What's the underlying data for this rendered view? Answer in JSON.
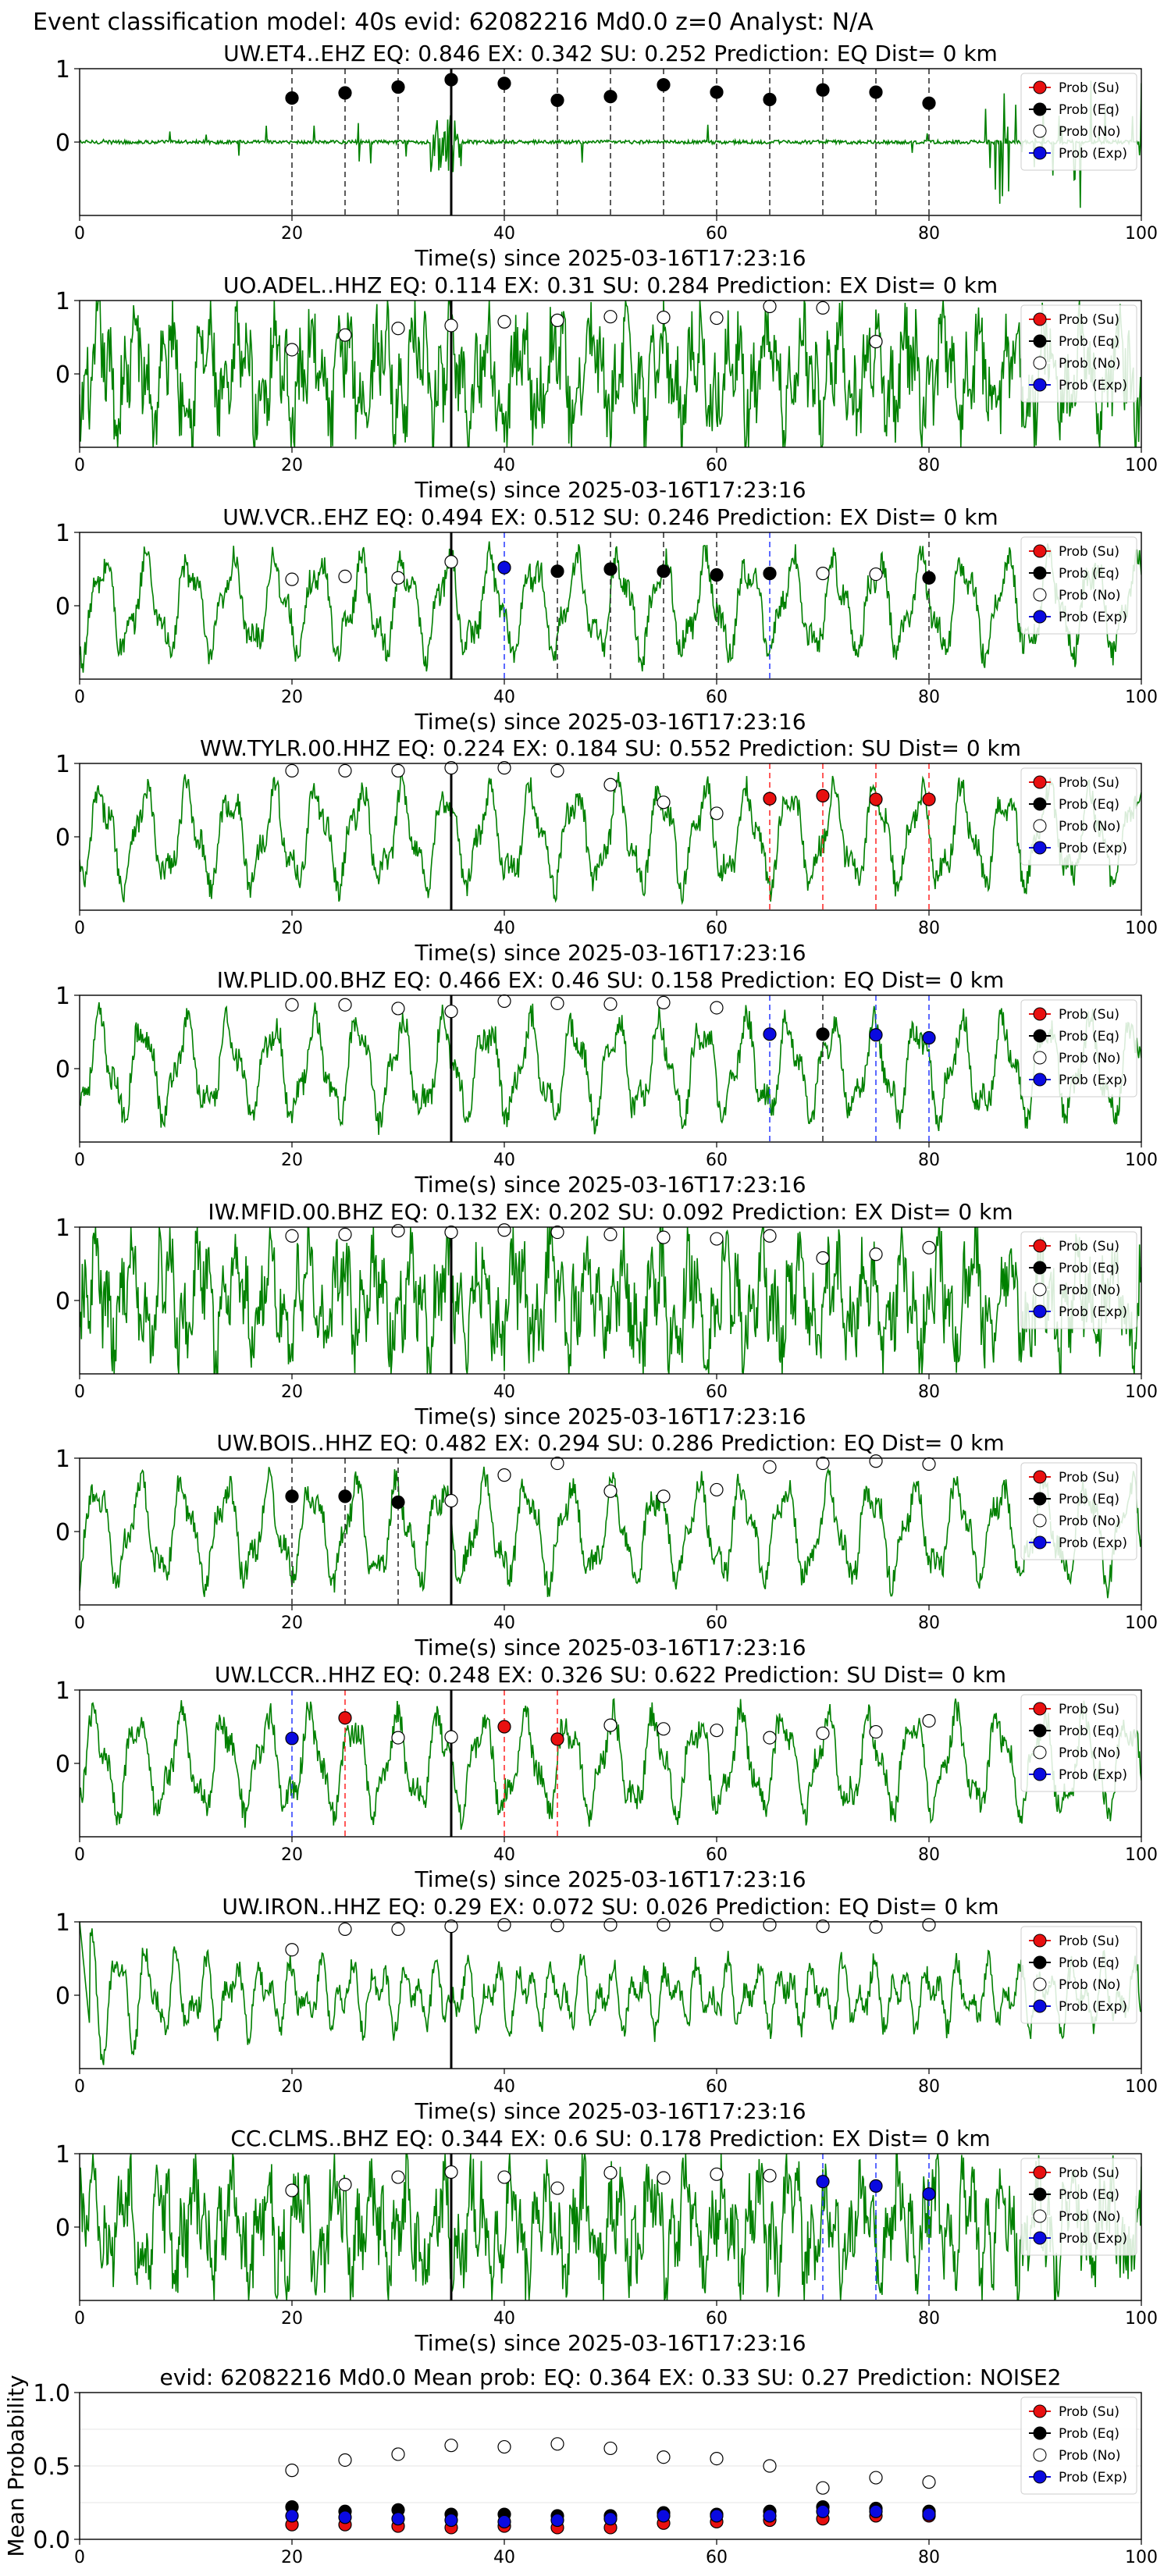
{
  "suptitle": "Event classification model: 40s evid: 62082216 Md0.0 z=0 Analyst: N/A",
  "colors": {
    "waveform": "#008000",
    "su": "#e81010",
    "eq": "#000000",
    "no": "#ffffff",
    "exp": "#0a0ae0",
    "line_su": "#ff3030",
    "line_eq": "#333333",
    "line_exp": "#3344ff",
    "origin": "#000000"
  },
  "legend_labels": [
    "Prob (Su)",
    "Prob (Eq)",
    "Prob (No)",
    "Prob (Exp)"
  ],
  "chart_data": [
    {
      "type": "line",
      "title": "UW.ET4..EHZ   EQ: 0.846  EX: 0.342  SU: 0.252   Prediction: EQ    Dist= 0 km",
      "xlabel": "Time(s) since 2025-03-16T17:23:16",
      "ylabel": "",
      "xlim": [
        0,
        100
      ],
      "ylim": [
        -1,
        1
      ],
      "xticks": [
        "0",
        "20",
        "40",
        "60",
        "80",
        "100"
      ],
      "yticks": [
        "1",
        "0"
      ],
      "origin_time": 35,
      "waveform_style": "spiky",
      "legend": "top-right",
      "series": [
        {
          "name": "Prob (Su)",
          "x": [],
          "y": []
        },
        {
          "name": "Prob (Eq)",
          "x": [
            20,
            25,
            30,
            35,
            40,
            45,
            50,
            55,
            60,
            65,
            70,
            75,
            80
          ],
          "y": [
            0.6,
            0.67,
            0.75,
            0.85,
            0.8,
            0.57,
            0.62,
            0.78,
            0.68,
            0.58,
            0.71,
            0.68,
            0.53
          ]
        },
        {
          "name": "Prob (No)",
          "x": [],
          "y": []
        },
        {
          "name": "Prob (Exp)",
          "x": [],
          "y": []
        }
      ],
      "pick_lines": [
        {
          "x": 20,
          "class": "eq"
        },
        {
          "x": 25,
          "class": "eq"
        },
        {
          "x": 30,
          "class": "eq"
        },
        {
          "x": 40,
          "class": "eq"
        },
        {
          "x": 45,
          "class": "eq"
        },
        {
          "x": 50,
          "class": "eq"
        },
        {
          "x": 55,
          "class": "eq"
        },
        {
          "x": 60,
          "class": "eq"
        },
        {
          "x": 65,
          "class": "eq"
        },
        {
          "x": 70,
          "class": "eq"
        },
        {
          "x": 75,
          "class": "eq"
        },
        {
          "x": 80,
          "class": "eq"
        }
      ]
    },
    {
      "type": "line",
      "title": "UO.ADEL..HHZ   EQ: 0.114  EX: 0.31  SU: 0.284   Prediction: EX    Dist= 0 km",
      "xlabel": "Time(s) since 2025-03-16T17:23:16",
      "ylabel": "",
      "xlim": [
        0,
        100
      ],
      "ylim": [
        -1,
        1
      ],
      "xticks": [
        "0",
        "20",
        "40",
        "60",
        "80",
        "100"
      ],
      "yticks": [
        "1",
        "0"
      ],
      "origin_time": 35,
      "waveform_style": "noisy",
      "legend": "top-right",
      "series": [
        {
          "name": "Prob (Su)",
          "x": [],
          "y": []
        },
        {
          "name": "Prob (Eq)",
          "x": [],
          "y": []
        },
        {
          "name": "Prob (No)",
          "x": [
            20,
            25,
            30,
            35,
            40,
            45,
            50,
            55,
            60,
            65,
            70,
            75
          ],
          "y": [
            0.33,
            0.53,
            0.62,
            0.66,
            0.71,
            0.73,
            0.78,
            0.77,
            0.76,
            0.92,
            0.9,
            0.44
          ]
        },
        {
          "name": "Prob (Exp)",
          "x": [],
          "y": []
        }
      ],
      "pick_lines": []
    },
    {
      "type": "line",
      "title": "UW.VCR..EHZ   EQ: 0.494  EX: 0.512  SU: 0.246   Prediction: EX    Dist= 0 km",
      "xlabel": "Time(s) since 2025-03-16T17:23:16",
      "ylabel": "",
      "xlim": [
        0,
        100
      ],
      "ylim": [
        -1,
        1
      ],
      "xticks": [
        "0",
        "20",
        "40",
        "60",
        "80",
        "100"
      ],
      "yticks": [
        "1",
        "0"
      ],
      "origin_time": 35,
      "waveform_style": "wavy",
      "legend": "top-right",
      "series": [
        {
          "name": "Prob (Su)",
          "x": [],
          "y": []
        },
        {
          "name": "Prob (Eq)",
          "x": [
            45,
            50,
            55,
            60,
            65,
            80
          ],
          "y": [
            0.47,
            0.5,
            0.47,
            0.42,
            0.44,
            0.38
          ]
        },
        {
          "name": "Prob (No)",
          "x": [
            20,
            25,
            30,
            35,
            70,
            75
          ],
          "y": [
            0.36,
            0.4,
            0.38,
            0.6,
            0.44,
            0.43
          ]
        },
        {
          "name": "Prob (Exp)",
          "x": [
            40
          ],
          "y": [
            0.52
          ]
        }
      ],
      "pick_lines": [
        {
          "x": 40,
          "class": "exp"
        },
        {
          "x": 45,
          "class": "eq"
        },
        {
          "x": 50,
          "class": "eq"
        },
        {
          "x": 55,
          "class": "eq"
        },
        {
          "x": 60,
          "class": "eq"
        },
        {
          "x": 65,
          "class": "exp"
        },
        {
          "x": 80,
          "class": "eq"
        }
      ]
    },
    {
      "type": "line",
      "title": "WW.TYLR.00.HHZ   EQ: 0.224  EX: 0.184  SU: 0.552   Prediction: SU    Dist= 0 km",
      "xlabel": "Time(s) since 2025-03-16T17:23:16",
      "ylabel": "",
      "xlim": [
        0,
        100
      ],
      "ylim": [
        -1,
        1
      ],
      "xticks": [
        "0",
        "20",
        "40",
        "60",
        "80",
        "100"
      ],
      "yticks": [
        "1",
        "0"
      ],
      "origin_time": 35,
      "waveform_style": "wavy",
      "legend": "top-right",
      "series": [
        {
          "name": "Prob (Su)",
          "x": [
            65,
            70,
            75,
            80
          ],
          "y": [
            0.52,
            0.56,
            0.51,
            0.51
          ]
        },
        {
          "name": "Prob (Eq)",
          "x": [],
          "y": []
        },
        {
          "name": "Prob (No)",
          "x": [
            20,
            25,
            30,
            35,
            40,
            45,
            50,
            55,
            60
          ],
          "y": [
            0.9,
            0.9,
            0.9,
            0.94,
            0.94,
            0.9,
            0.71,
            0.47,
            0.32
          ]
        },
        {
          "name": "Prob (Exp)",
          "x": [],
          "y": []
        }
      ],
      "pick_lines": [
        {
          "x": 65,
          "class": "su"
        },
        {
          "x": 70,
          "class": "su"
        },
        {
          "x": 75,
          "class": "su"
        },
        {
          "x": 80,
          "class": "su"
        }
      ]
    },
    {
      "type": "line",
      "title": "IW.PLID.00.BHZ   EQ: 0.466  EX: 0.46  SU: 0.158   Prediction: EQ    Dist= 0 km",
      "xlabel": "Time(s) since 2025-03-16T17:23:16",
      "ylabel": "",
      "xlim": [
        0,
        100
      ],
      "ylim": [
        -1,
        1
      ],
      "xticks": [
        "0",
        "20",
        "40",
        "60",
        "80",
        "100"
      ],
      "yticks": [
        "1",
        "0"
      ],
      "origin_time": 35,
      "waveform_style": "wavy",
      "legend": "top-right",
      "series": [
        {
          "name": "Prob (Su)",
          "x": [],
          "y": []
        },
        {
          "name": "Prob (Eq)",
          "x": [
            70
          ],
          "y": [
            0.47
          ]
        },
        {
          "name": "Prob (No)",
          "x": [
            20,
            25,
            30,
            35,
            40,
            45,
            50,
            55,
            60
          ],
          "y": [
            0.87,
            0.87,
            0.82,
            0.78,
            0.92,
            0.89,
            0.88,
            0.9,
            0.83
          ]
        },
        {
          "name": "Prob (Exp)",
          "x": [
            65,
            75,
            80
          ],
          "y": [
            0.47,
            0.46,
            0.42
          ]
        }
      ],
      "pick_lines": [
        {
          "x": 65,
          "class": "exp"
        },
        {
          "x": 70,
          "class": "eq"
        },
        {
          "x": 75,
          "class": "exp"
        },
        {
          "x": 80,
          "class": "exp"
        }
      ]
    },
    {
      "type": "line",
      "title": "IW.MFID.00.BHZ   EQ: 0.132  EX: 0.202  SU: 0.092   Prediction: EX    Dist= 0 km",
      "xlabel": "Time(s) since 2025-03-16T17:23:16",
      "ylabel": "",
      "xlim": [
        0,
        100
      ],
      "ylim": [
        -1,
        1
      ],
      "xticks": [
        "0",
        "20",
        "40",
        "60",
        "80",
        "100"
      ],
      "yticks": [
        "1",
        "0"
      ],
      "origin_time": 35,
      "waveform_style": "noisy",
      "legend": "top-right",
      "series": [
        {
          "name": "Prob (Su)",
          "x": [],
          "y": []
        },
        {
          "name": "Prob (Eq)",
          "x": [],
          "y": []
        },
        {
          "name": "Prob (No)",
          "x": [
            20,
            25,
            30,
            35,
            40,
            45,
            50,
            55,
            60,
            65,
            70,
            75,
            80
          ],
          "y": [
            0.88,
            0.9,
            0.95,
            0.93,
            0.96,
            0.93,
            0.9,
            0.86,
            0.84,
            0.88,
            0.58,
            0.63,
            0.72
          ]
        },
        {
          "name": "Prob (Exp)",
          "x": [],
          "y": []
        }
      ],
      "pick_lines": []
    },
    {
      "type": "line",
      "title": "UW.BOIS..HHZ   EQ: 0.482  EX: 0.294  SU: 0.286   Prediction: EQ    Dist= 0 km",
      "xlabel": "Time(s) since 2025-03-16T17:23:16",
      "ylabel": "",
      "xlim": [
        0,
        100
      ],
      "ylim": [
        -1,
        1
      ],
      "xticks": [
        "0",
        "20",
        "40",
        "60",
        "80",
        "100"
      ],
      "yticks": [
        "1",
        "0"
      ],
      "origin_time": 35,
      "waveform_style": "wavy",
      "legend": "top-right",
      "series": [
        {
          "name": "Prob (Su)",
          "x": [],
          "y": []
        },
        {
          "name": "Prob (Eq)",
          "x": [
            20,
            25,
            30
          ],
          "y": [
            0.48,
            0.48,
            0.4
          ]
        },
        {
          "name": "Prob (No)",
          "x": [
            35,
            40,
            45,
            50,
            55,
            60,
            65,
            70,
            75,
            80
          ],
          "y": [
            0.42,
            0.77,
            0.93,
            0.55,
            0.48,
            0.57,
            0.88,
            0.93,
            0.96,
            0.92
          ]
        },
        {
          "name": "Prob (Exp)",
          "x": [],
          "y": []
        }
      ],
      "pick_lines": [
        {
          "x": 20,
          "class": "eq"
        },
        {
          "x": 25,
          "class": "eq"
        },
        {
          "x": 30,
          "class": "eq"
        }
      ]
    },
    {
      "type": "line",
      "title": "UW.LCCR..HHZ   EQ: 0.248  EX: 0.326  SU: 0.622   Prediction: SU    Dist= 0 km",
      "xlabel": "Time(s) since 2025-03-16T17:23:16",
      "ylabel": "",
      "xlim": [
        0,
        100
      ],
      "ylim": [
        -1,
        1
      ],
      "xticks": [
        "0",
        "20",
        "40",
        "60",
        "80",
        "100"
      ],
      "yticks": [
        "1",
        "0"
      ],
      "origin_time": 35,
      "waveform_style": "wavy",
      "legend": "top-right",
      "series": [
        {
          "name": "Prob (Su)",
          "x": [
            25,
            40,
            45
          ],
          "y": [
            0.62,
            0.5,
            0.33
          ]
        },
        {
          "name": "Prob (Eq)",
          "x": [],
          "y": []
        },
        {
          "name": "Prob (No)",
          "x": [
            30,
            35,
            50,
            55,
            60,
            65,
            70,
            75,
            80
          ],
          "y": [
            0.35,
            0.36,
            0.52,
            0.47,
            0.45,
            0.35,
            0.41,
            0.43,
            0.58
          ]
        },
        {
          "name": "Prob (Exp)",
          "x": [
            20
          ],
          "y": [
            0.34
          ]
        }
      ],
      "pick_lines": [
        {
          "x": 20,
          "class": "exp"
        },
        {
          "x": 25,
          "class": "su"
        },
        {
          "x": 40,
          "class": "su"
        },
        {
          "x": 45,
          "class": "su"
        }
      ]
    },
    {
      "type": "line",
      "title": "UW.IRON..HHZ   EQ: 0.29  EX: 0.072  SU: 0.026   Prediction: EQ    Dist= 0 km",
      "xlabel": "Time(s) since 2025-03-16T17:23:16",
      "ylabel": "",
      "xlim": [
        0,
        100
      ],
      "ylim": [
        -1,
        1
      ],
      "xticks": [
        "0",
        "20",
        "40",
        "60",
        "80",
        "100"
      ],
      "yticks": [
        "1",
        "0"
      ],
      "origin_time": 35,
      "waveform_style": "decay",
      "legend": "top-right",
      "series": [
        {
          "name": "Prob (Su)",
          "x": [],
          "y": []
        },
        {
          "name": "Prob (Eq)",
          "x": [],
          "y": []
        },
        {
          "name": "Prob (No)",
          "x": [
            20,
            25,
            30,
            35,
            40,
            45,
            50,
            55,
            60,
            65,
            70,
            75,
            80
          ],
          "y": [
            0.62,
            0.9,
            0.9,
            0.94,
            0.96,
            0.95,
            0.96,
            0.96,
            0.96,
            0.96,
            0.94,
            0.93,
            0.96
          ]
        },
        {
          "name": "Prob (Exp)",
          "x": [],
          "y": []
        }
      ],
      "pick_lines": []
    },
    {
      "type": "line",
      "title": "CC.CLMS..BHZ   EQ: 0.344  EX: 0.6  SU: 0.178   Prediction: EX    Dist= 0 km",
      "xlabel": "Time(s) since 2025-03-16T17:23:16",
      "ylabel": "",
      "xlim": [
        0,
        100
      ],
      "ylim": [
        -1,
        1
      ],
      "xticks": [
        "0",
        "20",
        "40",
        "60",
        "80",
        "100"
      ],
      "yticks": [
        "1",
        "0"
      ],
      "origin_time": 35,
      "waveform_style": "noisy",
      "legend": "top-right",
      "series": [
        {
          "name": "Prob (Su)",
          "x": [],
          "y": []
        },
        {
          "name": "Prob (Eq)",
          "x": [],
          "y": []
        },
        {
          "name": "Prob (No)",
          "x": [
            20,
            25,
            30,
            35,
            40,
            45,
            50,
            55,
            60,
            65
          ],
          "y": [
            0.5,
            0.58,
            0.68,
            0.75,
            0.68,
            0.53,
            0.74,
            0.67,
            0.72,
            0.7
          ]
        },
        {
          "name": "Prob (Exp)",
          "x": [
            70,
            75,
            80
          ],
          "y": [
            0.62,
            0.56,
            0.45
          ]
        }
      ],
      "pick_lines": [
        {
          "x": 70,
          "class": "exp"
        },
        {
          "x": 75,
          "class": "exp"
        },
        {
          "x": 80,
          "class": "exp"
        }
      ]
    },
    {
      "type": "scatter",
      "title": "evid: 62082216  Md0.0   Mean prob:   EQ: 0.364  EX: 0.33  SU: 0.27   Prediction: NOISE2",
      "xlabel": "",
      "ylabel": "Mean Probability",
      "xlim": [
        0,
        100
      ],
      "ylim": [
        0,
        1
      ],
      "xticks": [
        "0",
        "20",
        "40",
        "60",
        "80",
        "100"
      ],
      "yticks": [
        "1.0",
        "0.5",
        "0.0"
      ],
      "grid": true,
      "legend": "top-right",
      "series": [
        {
          "name": "Prob (Su)",
          "x": [
            20,
            25,
            30,
            35,
            40,
            45,
            50,
            55,
            60,
            65,
            70,
            75,
            80
          ],
          "y": [
            0.1,
            0.1,
            0.09,
            0.08,
            0.09,
            0.08,
            0.08,
            0.11,
            0.12,
            0.13,
            0.14,
            0.16,
            0.16
          ]
        },
        {
          "name": "Prob (Eq)",
          "x": [
            20,
            25,
            30,
            35,
            40,
            45,
            50,
            55,
            60,
            65,
            70,
            75,
            80
          ],
          "y": [
            0.22,
            0.19,
            0.2,
            0.17,
            0.17,
            0.16,
            0.16,
            0.18,
            0.17,
            0.19,
            0.22,
            0.21,
            0.19
          ]
        },
        {
          "name": "Prob (No)",
          "x": [
            20,
            25,
            30,
            35,
            40,
            45,
            50,
            55,
            60,
            65,
            70,
            75,
            80
          ],
          "y": [
            0.47,
            0.54,
            0.58,
            0.64,
            0.63,
            0.65,
            0.62,
            0.56,
            0.55,
            0.5,
            0.35,
            0.42,
            0.39
          ]
        },
        {
          "name": "Prob (Exp)",
          "x": [
            20,
            25,
            30,
            35,
            40,
            45,
            50,
            55,
            60,
            65,
            70,
            75,
            80
          ],
          "y": [
            0.16,
            0.15,
            0.14,
            0.13,
            0.12,
            0.13,
            0.14,
            0.16,
            0.16,
            0.16,
            0.19,
            0.19,
            0.17
          ]
        }
      ]
    }
  ]
}
